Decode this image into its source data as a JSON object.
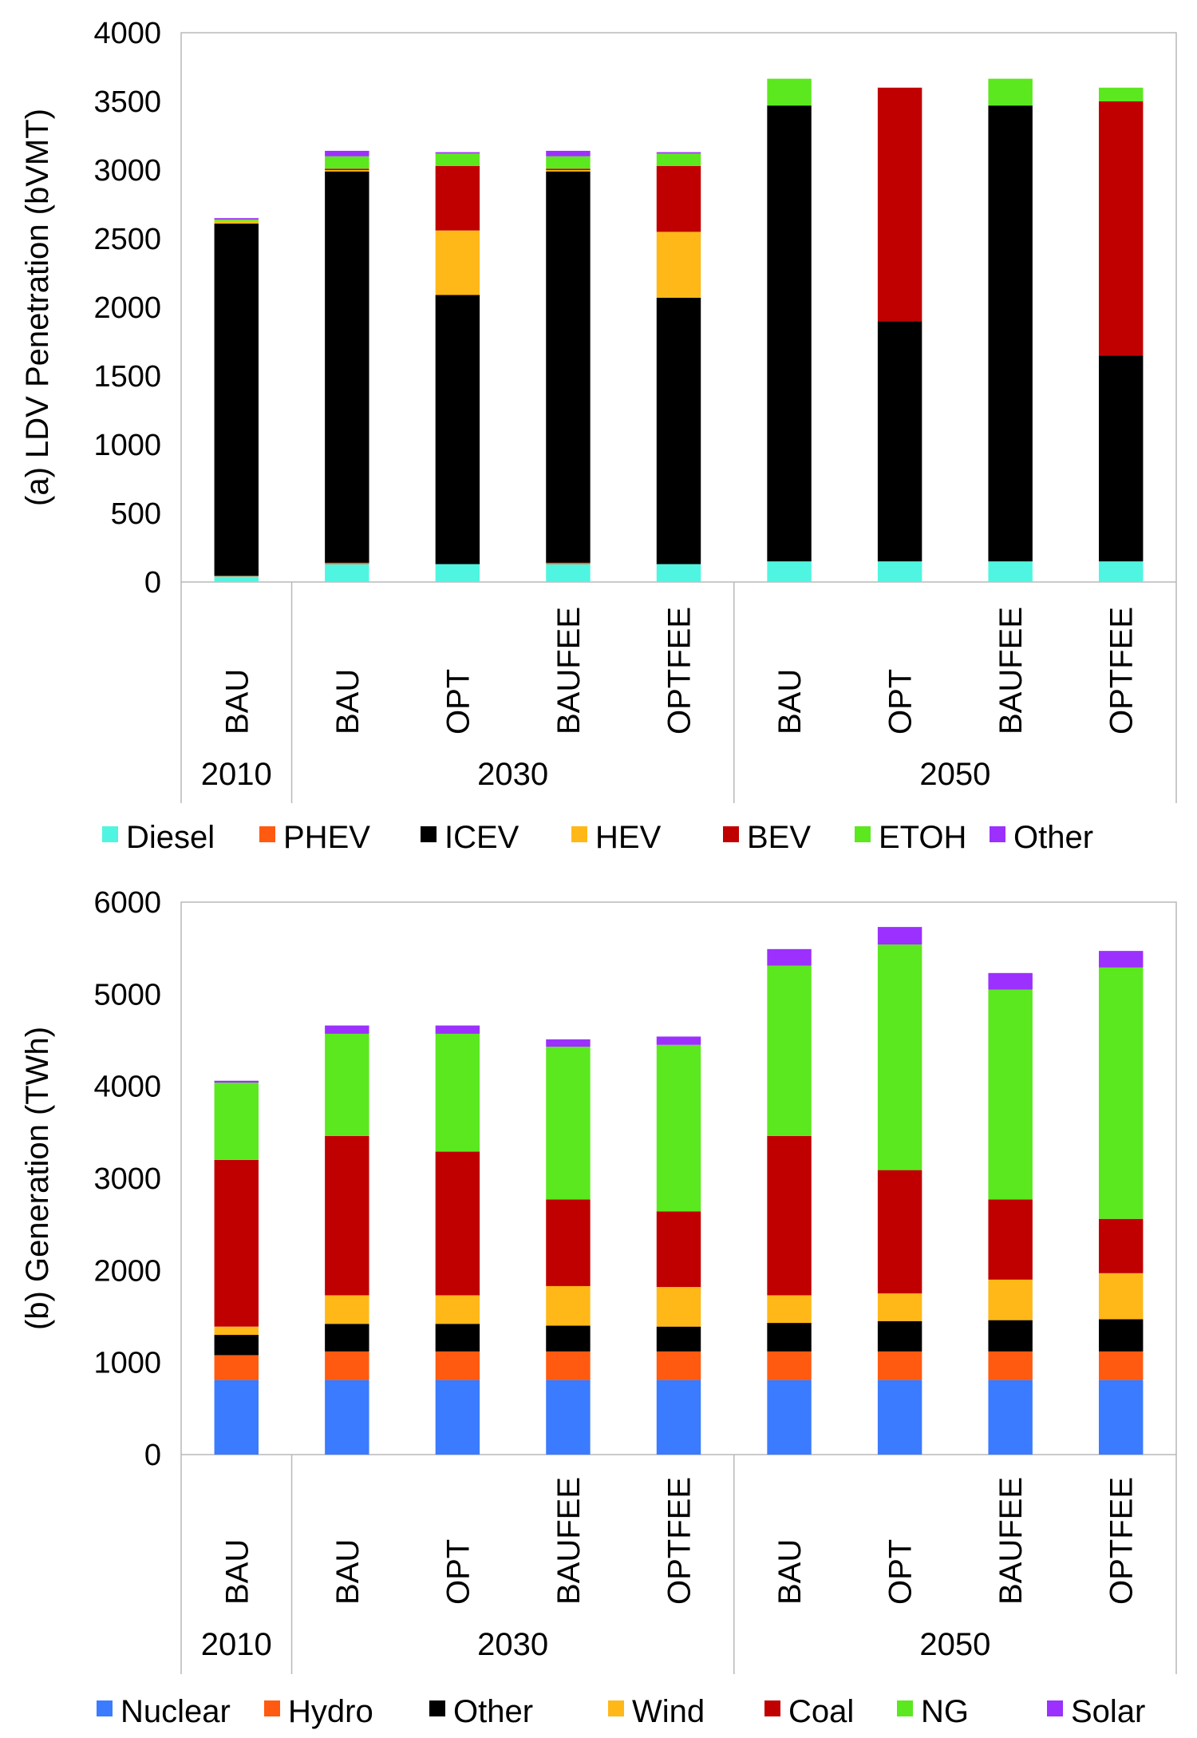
{
  "chart_data": [
    {
      "type": "bar",
      "stacked": true,
      "title": "",
      "ylabel": "(a) LDV Penetration (bVMT)",
      "ylim": [
        0,
        4000
      ],
      "yticks": [
        "0",
        "500",
        "1000",
        "1500",
        "2000",
        "2500",
        "3000",
        "3500",
        "4000"
      ],
      "groups": [
        {
          "label": "2010",
          "categories": [
            "BAU"
          ]
        },
        {
          "label": "2030",
          "categories": [
            "BAU",
            "OPT",
            "BAUFEE",
            "OPTFEE"
          ]
        },
        {
          "label": "2050",
          "categories": [
            "BAU",
            "OPT",
            "BAUFEE",
            "OPTFEE"
          ]
        }
      ],
      "series": [
        {
          "name": "Diesel",
          "color": "#4FF5E0",
          "values": [
            40,
            130,
            130,
            130,
            130,
            150,
            150,
            150,
            150
          ]
        },
        {
          "name": "PHEV",
          "color": "#FF5A10",
          "values": [
            5,
            10,
            0,
            10,
            0,
            0,
            0,
            0,
            0
          ]
        },
        {
          "name": "ICEV",
          "color": "#000000",
          "values": [
            2565,
            2850,
            1960,
            2850,
            1940,
            3320,
            1750,
            3320,
            1500
          ]
        },
        {
          "name": "HEV",
          "color": "#FFB818",
          "values": [
            20,
            10,
            470,
            10,
            480,
            0,
            0,
            0,
            0
          ]
        },
        {
          "name": "BEV",
          "color": "#C00000",
          "values": [
            0,
            10,
            470,
            10,
            480,
            0,
            1700,
            0,
            1850
          ]
        },
        {
          "name": "ETOH",
          "color": "#5BE81E",
          "values": [
            10,
            90,
            90,
            90,
            90,
            195,
            0,
            195,
            100
          ]
        },
        {
          "name": "Other",
          "color": "#9B30FF",
          "values": [
            10,
            40,
            10,
            40,
            10,
            0,
            0,
            0,
            0
          ]
        }
      ]
    },
    {
      "type": "bar",
      "stacked": true,
      "title": "",
      "ylabel": "(b) Generation (TWh)",
      "ylim": [
        0,
        6000
      ],
      "yticks": [
        "0",
        "1000",
        "2000",
        "3000",
        "4000",
        "5000",
        "6000"
      ],
      "groups": [
        {
          "label": "2010",
          "categories": [
            "BAU"
          ]
        },
        {
          "label": "2030",
          "categories": [
            "BAU",
            "OPT",
            "BAUFEE",
            "OPTFEE"
          ]
        },
        {
          "label": "2050",
          "categories": [
            "BAU",
            "OPT",
            "BAUFEE",
            "OPTFEE"
          ]
        }
      ],
      "series": [
        {
          "name": "Nuclear",
          "color": "#3B7BFF",
          "values": [
            810,
            810,
            810,
            810,
            810,
            810,
            810,
            810,
            810
          ]
        },
        {
          "name": "Hydro",
          "color": "#FF5A10",
          "values": [
            270,
            310,
            310,
            310,
            310,
            310,
            310,
            310,
            310
          ]
        },
        {
          "name": "Other",
          "color": "#000000",
          "values": [
            220,
            300,
            300,
            280,
            270,
            310,
            330,
            340,
            350
          ]
        },
        {
          "name": "Wind",
          "color": "#FFB818",
          "values": [
            90,
            310,
            310,
            430,
            430,
            300,
            300,
            440,
            500
          ]
        },
        {
          "name": "Coal",
          "color": "#C00000",
          "values": [
            1810,
            1730,
            1560,
            940,
            820,
            1730,
            1340,
            870,
            590
          ]
        },
        {
          "name": "NG",
          "color": "#5BE81E",
          "values": [
            840,
            1110,
            1280,
            1660,
            1810,
            1850,
            2450,
            2280,
            2730
          ]
        },
        {
          "name": "Solar",
          "color": "#9B30FF",
          "values": [
            20,
            90,
            90,
            80,
            90,
            180,
            190,
            180,
            180
          ]
        }
      ]
    }
  ]
}
